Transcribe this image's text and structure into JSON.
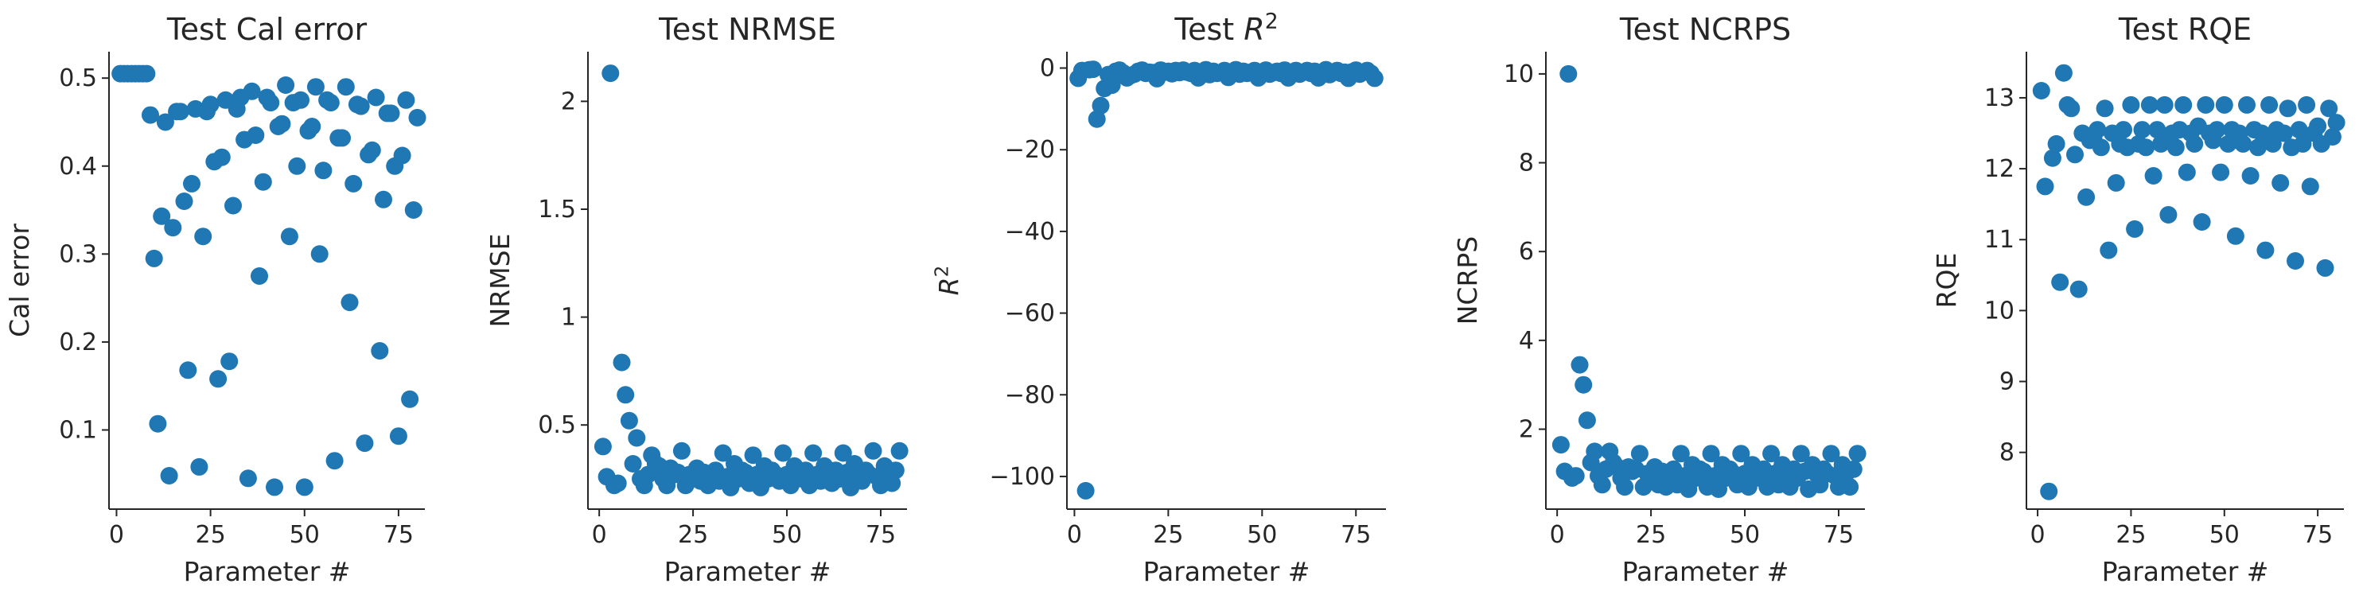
{
  "chart_data": [
    {
      "type": "scatter",
      "title": "Test Cal error",
      "xlabel": "Parameter #",
      "ylabel": "Cal error",
      "xlim": [
        -2,
        82
      ],
      "ylim": [
        0.01,
        0.53
      ],
      "xticks": [
        0,
        25,
        50,
        75
      ],
      "yticks": [
        0.1,
        0.2,
        0.3,
        0.4,
        0.5
      ],
      "color": "#1f77b4",
      "x": [
        1,
        2,
        3,
        4,
        5,
        6,
        7,
        8,
        9,
        10,
        11,
        12,
        13,
        14,
        15,
        16,
        17,
        18,
        19,
        20,
        21,
        22,
        23,
        24,
        25,
        26,
        27,
        28,
        29,
        30,
        31,
        32,
        33,
        34,
        35,
        36,
        37,
        38,
        39,
        40,
        41,
        42,
        43,
        44,
        45,
        46,
        47,
        48,
        49,
        50,
        51,
        52,
        53,
        54,
        55,
        56,
        57,
        58,
        59,
        60,
        61,
        62,
        63,
        64,
        65,
        66,
        67,
        68,
        69,
        70,
        71,
        72,
        73,
        74,
        75,
        76,
        77,
        78,
        79,
        80
      ],
      "y": [
        0.505,
        0.505,
        0.505,
        0.505,
        0.505,
        0.505,
        0.505,
        0.505,
        0.458,
        0.295,
        0.107,
        0.343,
        0.45,
        0.048,
        0.33,
        0.462,
        0.462,
        0.36,
        0.168,
        0.38,
        0.465,
        0.058,
        0.32,
        0.462,
        0.47,
        0.405,
        0.158,
        0.41,
        0.475,
        0.178,
        0.355,
        0.465,
        0.478,
        0.43,
        0.045,
        0.485,
        0.435,
        0.275,
        0.382,
        0.478,
        0.472,
        0.035,
        0.445,
        0.448,
        0.492,
        0.32,
        0.472,
        0.4,
        0.475,
        0.035,
        0.44,
        0.445,
        0.49,
        0.3,
        0.395,
        0.475,
        0.472,
        0.065,
        0.432,
        0.432,
        0.49,
        0.245,
        0.38,
        0.47,
        0.468,
        0.085,
        0.413,
        0.418,
        0.478,
        0.19,
        0.362,
        0.46,
        0.46,
        0.4,
        0.093,
        0.412,
        0.475,
        0.135,
        0.35,
        0.455
      ]
    },
    {
      "type": "scatter",
      "title": "Test NRMSE",
      "xlabel": "Parameter #",
      "ylabel": "NRMSE",
      "xlim": [
        -3,
        82
      ],
      "ylim": [
        0.11,
        2.23
      ],
      "xticks": [
        0,
        25,
        50,
        75
      ],
      "yticks": [
        0.5,
        1.0,
        1.5,
        2.0
      ],
      "color": "#1f77b4",
      "x": [
        1,
        2,
        3,
        4,
        5,
        6,
        7,
        8,
        9,
        10,
        11,
        12,
        13,
        14,
        15,
        16,
        17,
        18,
        19,
        20,
        21,
        22,
        23,
        24,
        25,
        26,
        27,
        28,
        29,
        30,
        31,
        32,
        33,
        34,
        35,
        36,
        37,
        38,
        39,
        40,
        41,
        42,
        43,
        44,
        45,
        46,
        47,
        48,
        49,
        50,
        51,
        52,
        53,
        54,
        55,
        56,
        57,
        58,
        59,
        60,
        61,
        62,
        63,
        64,
        65,
        66,
        67,
        68,
        69,
        70,
        71,
        72,
        73,
        74,
        75,
        76,
        77,
        78,
        79,
        80
      ],
      "y": [
        0.4,
        0.26,
        2.13,
        0.22,
        0.23,
        0.79,
        0.64,
        0.52,
        0.32,
        0.44,
        0.25,
        0.22,
        0.27,
        0.36,
        0.32,
        0.31,
        0.25,
        0.22,
        0.3,
        0.27,
        0.28,
        0.38,
        0.22,
        0.27,
        0.25,
        0.3,
        0.24,
        0.28,
        0.22,
        0.27,
        0.29,
        0.24,
        0.37,
        0.26,
        0.21,
        0.32,
        0.25,
        0.29,
        0.28,
        0.23,
        0.36,
        0.27,
        0.21,
        0.31,
        0.25,
        0.29,
        0.27,
        0.24,
        0.37,
        0.27,
        0.22,
        0.31,
        0.28,
        0.25,
        0.29,
        0.22,
        0.37,
        0.27,
        0.24,
        0.31,
        0.27,
        0.23,
        0.29,
        0.25,
        0.37,
        0.28,
        0.21,
        0.32,
        0.27,
        0.24,
        0.29,
        0.27,
        0.38,
        0.26,
        0.22,
        0.31,
        0.27,
        0.23,
        0.29,
        0.38
      ]
    },
    {
      "type": "scatter",
      "title": "Test R^2",
      "xlabel": "Parameter #",
      "ylabel": "R^2",
      "xlim": [
        -2,
        83
      ],
      "ylim": [
        -108,
        4
      ],
      "xticks": [
        0,
        25,
        50,
        75
      ],
      "yticks": [
        -100,
        -80,
        -60,
        -40,
        -20,
        0
      ],
      "color": "#1f77b4",
      "x": [
        1,
        2,
        3,
        4,
        5,
        6,
        7,
        8,
        9,
        10,
        11,
        12,
        13,
        14,
        15,
        16,
        17,
        18,
        19,
        20,
        21,
        22,
        23,
        24,
        25,
        26,
        27,
        28,
        29,
        30,
        31,
        32,
        33,
        34,
        35,
        36,
        37,
        38,
        39,
        40,
        41,
        42,
        43,
        44,
        45,
        46,
        47,
        48,
        49,
        50,
        51,
        52,
        53,
        54,
        55,
        56,
        57,
        58,
        59,
        60,
        61,
        62,
        63,
        64,
        65,
        66,
        67,
        68,
        69,
        70,
        71,
        72,
        73,
        74,
        75,
        76,
        77,
        78,
        79,
        80
      ],
      "y": [
        -2.5,
        -0.6,
        -103.5,
        -0.4,
        -0.3,
        -12.5,
        -9.2,
        -5.0,
        -1.6,
        -4.2,
        -0.8,
        -0.5,
        -1.2,
        -2.4,
        -1.8,
        -1.5,
        -0.8,
        -0.5,
        -1.3,
        -1.0,
        -1.1,
        -2.6,
        -0.5,
        -1.0,
        -0.8,
        -1.4,
        -0.6,
        -1.1,
        -0.5,
        -1.0,
        -1.3,
        -0.6,
        -2.4,
        -0.9,
        -0.4,
        -1.6,
        -0.8,
        -1.3,
        -1.1,
        -0.6,
        -2.3,
        -1.0,
        -0.4,
        -1.5,
        -0.8,
        -1.3,
        -1.0,
        -0.6,
        -2.4,
        -1.0,
        -0.5,
        -1.5,
        -1.1,
        -0.8,
        -1.3,
        -0.5,
        -2.4,
        -1.0,
        -0.6,
        -1.5,
        -1.0,
        -0.6,
        -1.3,
        -0.8,
        -2.4,
        -1.1,
        -0.4,
        -1.6,
        -1.0,
        -0.6,
        -1.3,
        -1.0,
        -2.5,
        -0.9,
        -0.5,
        -1.5,
        -1.0,
        -0.6,
        -1.3,
        -2.5
      ]
    },
    {
      "type": "scatter",
      "title": "Test NCRPS",
      "xlabel": "Parameter #",
      "ylabel": "NCRPS",
      "xlim": [
        -3,
        82
      ],
      "ylim": [
        0.2,
        10.5
      ],
      "xticks": [
        0,
        25,
        50,
        75
      ],
      "yticks": [
        2,
        4,
        6,
        8,
        10
      ],
      "color": "#1f77b4",
      "x": [
        1,
        2,
        3,
        4,
        5,
        6,
        7,
        8,
        9,
        10,
        11,
        12,
        13,
        14,
        15,
        16,
        17,
        18,
        19,
        20,
        21,
        22,
        23,
        24,
        25,
        26,
        27,
        28,
        29,
        30,
        31,
        32,
        33,
        34,
        35,
        36,
        37,
        38,
        39,
        40,
        41,
        42,
        43,
        44,
        45,
        46,
        47,
        48,
        49,
        50,
        51,
        52,
        53,
        54,
        55,
        56,
        57,
        58,
        59,
        60,
        61,
        62,
        63,
        64,
        65,
        66,
        67,
        68,
        69,
        70,
        71,
        72,
        73,
        74,
        75,
        76,
        77,
        78,
        79,
        80
      ],
      "y": [
        1.65,
        1.05,
        10.0,
        0.9,
        0.95,
        3.45,
        3.0,
        2.2,
        1.25,
        1.5,
        0.95,
        0.75,
        1.1,
        1.5,
        1.25,
        1.15,
        0.9,
        0.7,
        1.15,
        1.05,
        1.1,
        1.45,
        0.7,
        1.0,
        0.9,
        1.15,
        0.75,
        1.05,
        0.7,
        1.0,
        1.1,
        0.75,
        1.45,
        0.95,
        0.65,
        1.2,
        0.9,
        1.1,
        1.05,
        0.7,
        1.45,
        0.95,
        0.65,
        1.2,
        0.9,
        1.1,
        1.0,
        0.75,
        1.45,
        1.0,
        0.7,
        1.2,
        1.05,
        0.9,
        1.1,
        0.7,
        1.45,
        1.0,
        0.75,
        1.2,
        1.0,
        0.7,
        1.1,
        0.9,
        1.45,
        1.05,
        0.65,
        1.2,
        1.0,
        0.75,
        1.1,
        1.0,
        1.45,
        0.95,
        0.7,
        1.2,
        1.0,
        0.7,
        1.1,
        1.45
      ]
    },
    {
      "type": "scatter",
      "title": "Test RQE",
      "xlabel": "Parameter #",
      "ylabel": "RQE",
      "xlim": [
        -3,
        82
      ],
      "ylim": [
        7.2,
        13.65
      ],
      "xticks": [
        0,
        25,
        50,
        75
      ],
      "yticks": [
        8,
        9,
        10,
        11,
        12,
        13
      ],
      "color": "#1f77b4",
      "x": [
        1,
        2,
        3,
        4,
        5,
        6,
        7,
        8,
        9,
        10,
        11,
        12,
        13,
        14,
        15,
        16,
        17,
        18,
        19,
        20,
        21,
        22,
        23,
        24,
        25,
        26,
        27,
        28,
        29,
        30,
        31,
        32,
        33,
        34,
        35,
        36,
        37,
        38,
        39,
        40,
        41,
        42,
        43,
        44,
        45,
        46,
        47,
        48,
        49,
        50,
        51,
        52,
        53,
        54,
        55,
        56,
        57,
        58,
        59,
        60,
        61,
        62,
        63,
        64,
        65,
        66,
        67,
        68,
        69,
        70,
        71,
        72,
        73,
        74,
        75,
        76,
        77,
        78,
        79,
        80
      ],
      "y": [
        13.1,
        11.75,
        7.45,
        12.15,
        12.35,
        10.4,
        13.35,
        12.9,
        12.85,
        12.2,
        10.3,
        12.5,
        11.6,
        12.4,
        12.45,
        12.55,
        12.3,
        12.85,
        10.85,
        12.5,
        11.8,
        12.35,
        12.55,
        12.3,
        12.9,
        11.15,
        12.35,
        12.55,
        12.3,
        12.9,
        11.9,
        12.55,
        12.35,
        12.9,
        11.35,
        12.5,
        12.3,
        12.55,
        12.9,
        11.95,
        12.5,
        12.35,
        12.6,
        11.25,
        12.9,
        12.5,
        12.4,
        12.55,
        11.95,
        12.9,
        12.35,
        12.55,
        11.05,
        12.5,
        12.35,
        12.9,
        11.9,
        12.55,
        12.3,
        12.5,
        10.85,
        12.9,
        12.35,
        12.55,
        11.8,
        12.5,
        12.85,
        12.3,
        10.7,
        12.55,
        12.35,
        12.9,
        11.75,
        12.5,
        12.6,
        12.35,
        10.6,
        12.85,
        12.45,
        12.65
      ]
    }
  ]
}
